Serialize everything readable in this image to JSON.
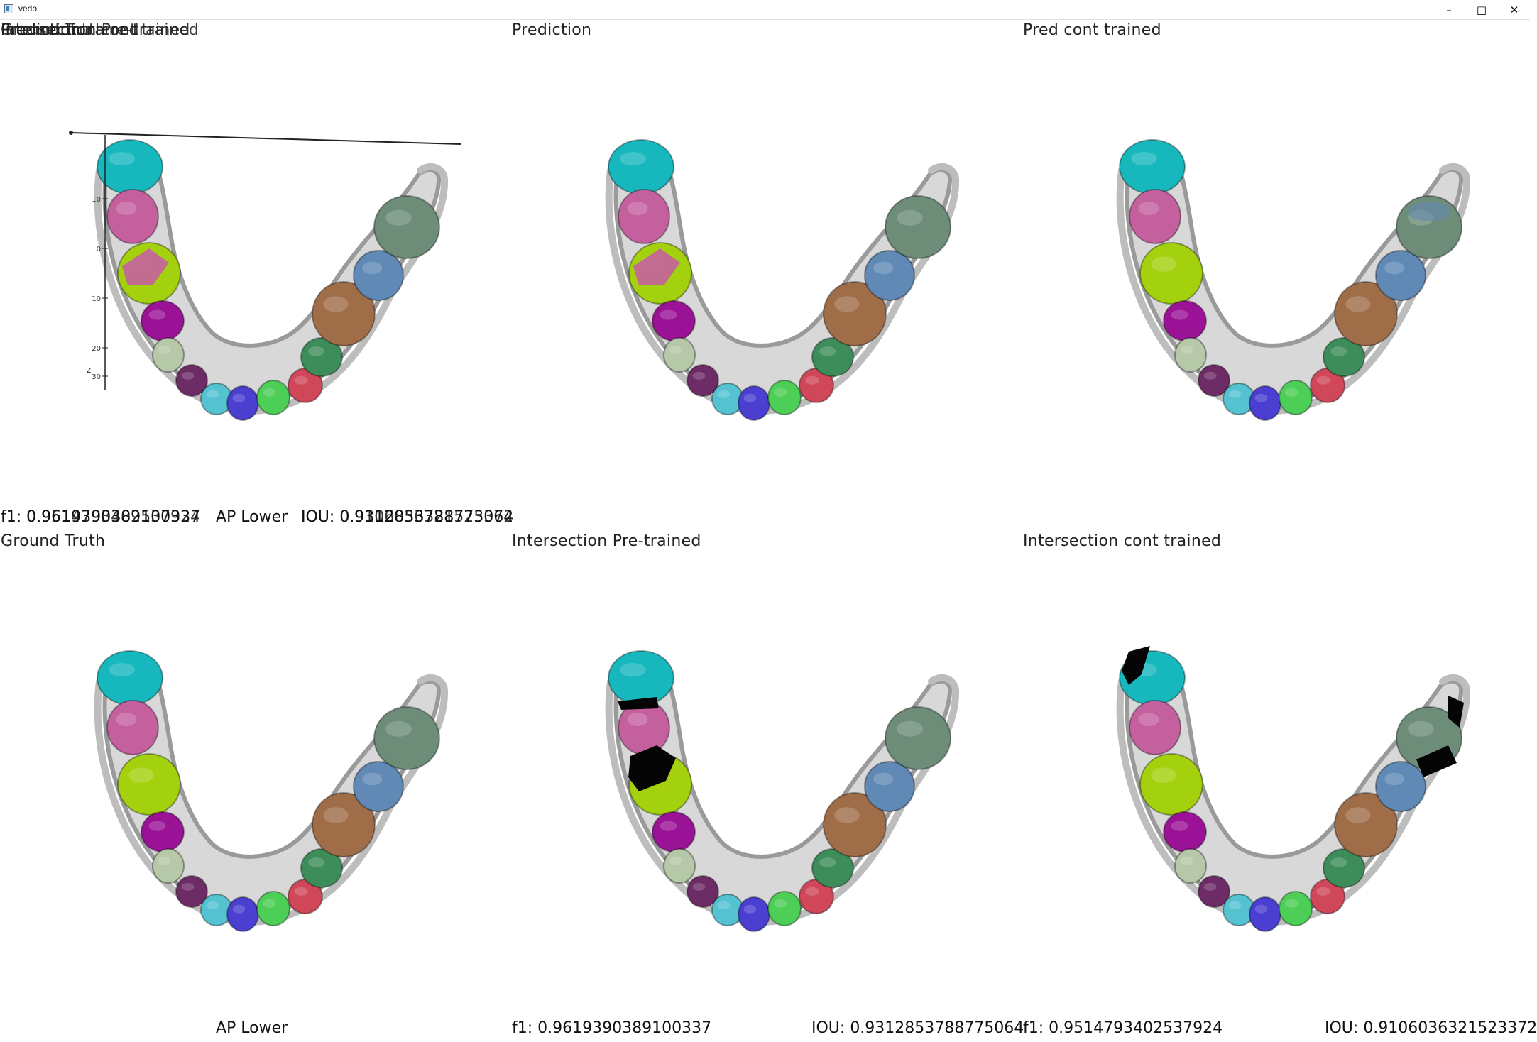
{
  "window": {
    "title": "vedo",
    "icon": "app-window-icon",
    "controls": {
      "minimize": "–",
      "maximize": "□",
      "close": "✕"
    }
  },
  "viewports": [
    {
      "id": "tl",
      "title": "Prediction",
      "overlay_titles": [
        "Intersection Pre-trained",
        "Ground Truth",
        "Pred cont trained",
        "Intersection cont trained"
      ],
      "variant": "pred"
    },
    {
      "id": "tm",
      "title": "Prediction",
      "variant": "pred"
    },
    {
      "id": "tr",
      "title": "Pred cont trained",
      "variant": "cont"
    },
    {
      "id": "bl",
      "title": "Ground Truth",
      "variant": "gt"
    },
    {
      "id": "bm",
      "title": "Intersection Pre-trained",
      "variant": "inter_pre"
    },
    {
      "id": "br",
      "title": "Intersection cont trained",
      "variant": "inter_cont"
    }
  ],
  "axes": {
    "ticks": [
      "10",
      "0",
      "10",
      "20",
      "30"
    ],
    "axis_label": "z"
  },
  "metrics": {
    "top": {
      "f1_overlap": [
        "f1: 0.9619390389100337",
        "f1: 0.9514793402537924"
      ],
      "label": "AP Lower",
      "iou_overlap": [
        "IOU: 0.9312853788775064",
        "IOU: 0.9106036321523372"
      ]
    },
    "bottom": {
      "label": "AP Lower",
      "f1_pre": "f1: 0.9619390389100337",
      "iou_pre": "IOU: 0.9312853788775064",
      "f1_cont": "f1: 0.9514793402537924",
      "iou_cont": "IOU: 0.9106036321523372"
    }
  },
  "tooth_colors": {
    "incisor_left_front": "#17b8bd",
    "canine_left": "#c5609f",
    "premolar_left": "#a3d10e",
    "molar_left": "#9a1396",
    "small_left_1": "#b5c9a8",
    "small_left_2": "#6d2c66",
    "front_1": "#55c2d2",
    "front_2": "#4a3fd0",
    "front_3": "#4cce57",
    "front_4": "#d0475a",
    "right_green": "#3d8d5a",
    "right_brown": "#a06d49",
    "right_blue": "#6089b5",
    "right_sage": "#6d8d78",
    "gum": "#d8d8d8",
    "error": "#050505"
  }
}
